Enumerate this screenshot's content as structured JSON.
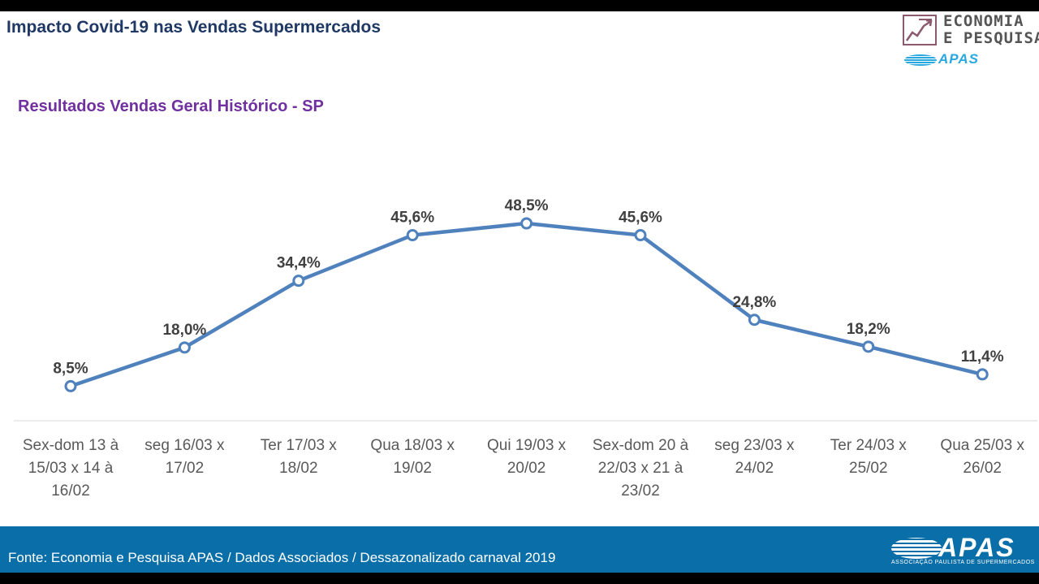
{
  "header": {
    "title": "Impacto Covid-19 nas Vendas Supermercados",
    "logo": {
      "line1": "ECONOMIA",
      "line2": "E PESQUISA",
      "brand": "APAS",
      "icon": "trend-chart-icon"
    }
  },
  "chart_data": {
    "type": "line",
    "title": "Resultados Vendas Geral Histórico - SP",
    "xlabel": "",
    "ylabel": "",
    "categories": [
      [
        "Sex-dom 13 à",
        "15/03  x 14 à",
        "16/02"
      ],
      [
        "seg 16/03 x",
        "17/02"
      ],
      [
        "Ter 17/03 x",
        "18/02"
      ],
      [
        "Qua 18/03 x",
        "19/02"
      ],
      [
        "Qui 19/03 x",
        "20/02"
      ],
      [
        "Sex-dom 20 à",
        "22/03  x 21 à",
        "23/02"
      ],
      [
        "seg 23/03 x",
        "24/02"
      ],
      [
        "Ter 24/03 x",
        "25/02"
      ],
      [
        "Qua 25/03 x",
        "26/02"
      ]
    ],
    "series": [
      {
        "values": [
          8.5,
          18.0,
          34.4,
          45.6,
          48.5,
          45.6,
          24.8,
          18.2,
          11.4
        ],
        "labels": [
          "8,5%",
          "18,0%",
          "34,4%",
          "45,6%",
          "48,5%",
          "45,6%",
          "24,8%",
          "18,2%",
          "11,4%"
        ],
        "color": "#4f81bd"
      }
    ],
    "grid": false,
    "legend": "none"
  },
  "footer": {
    "source": "Fonte: Economia e Pesquisa APAS / Dados Associados / Dessazonalizado carnaval 2019",
    "logo_word": "APAS",
    "logo_sub": "ASSOCIAÇÃO PAULISTA DE SUPERMERCADOS"
  }
}
